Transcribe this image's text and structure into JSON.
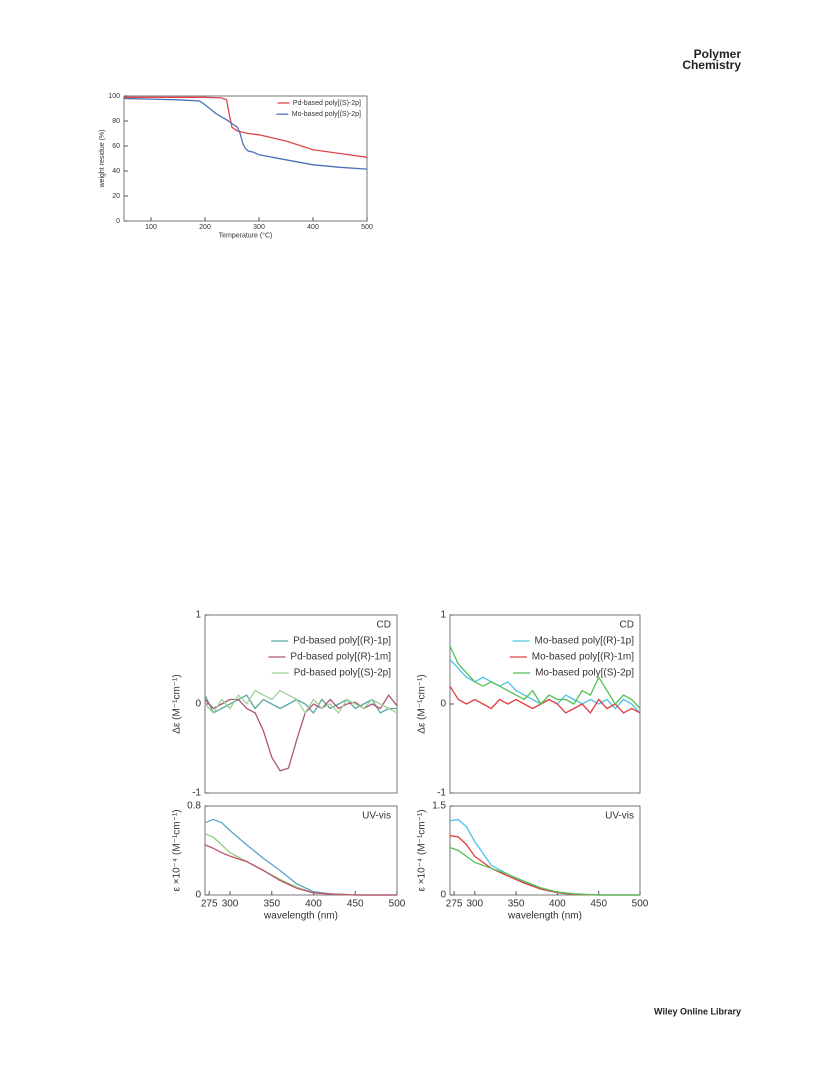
{
  "header": {
    "title": [
      "Polymer",
      "Chemistry"
    ]
  },
  "footer": {
    "text": "Wiley Online Library"
  },
  "chart_data": [
    {
      "type": "line",
      "xlabel": "Temperature (°C)",
      "ylabel": "weight residue (%)",
      "xlim": [
        50,
        500
      ],
      "ylim": [
        0,
        100
      ],
      "xticks": [
        100,
        200,
        300,
        400,
        500
      ],
      "yticks": [
        0,
        20,
        40,
        60,
        80,
        100
      ],
      "legend": "upper right",
      "series": [
        {
          "name": "Pd-based poly[(S)-2p]",
          "color": "#e0454f",
          "x": [
            50,
            100,
            150,
            200,
            230,
            240,
            245,
            250,
            260,
            280,
            300,
            350,
            400,
            450,
            500
          ],
          "values": [
            99,
            99,
            99,
            99,
            98.5,
            97,
            85,
            75,
            72,
            70,
            69,
            64,
            57,
            54,
            51
          ]
        },
        {
          "name": "Mo-based poly[(S)-2p]",
          "color": "#4a72b8",
          "x": [
            50,
            100,
            150,
            190,
            200,
            220,
            240,
            250,
            260,
            265,
            270,
            275,
            280,
            290,
            300,
            350,
            400,
            450,
            500
          ],
          "values": [
            98,
            97.5,
            97,
            96,
            93,
            86,
            81,
            78,
            75,
            70,
            62,
            58,
            56,
            55,
            53,
            49,
            45,
            43,
            41.5
          ]
        }
      ]
    },
    {
      "type": "line",
      "annotation": "CD",
      "ylabel": "Δε (M⁻¹cm⁻¹)",
      "xlim": [
        270,
        500
      ],
      "ylim": [
        -1,
        1
      ],
      "yticks": [
        -1,
        0,
        1
      ],
      "legend": "upper right",
      "x": [
        270,
        280,
        290,
        300,
        310,
        320,
        330,
        340,
        350,
        360,
        370,
        380,
        390,
        400,
        410,
        420,
        430,
        440,
        450,
        460,
        470,
        480,
        490,
        500
      ],
      "series": [
        {
          "name": "Pd-based poly[(R)-1p]",
          "color": "#5aa8a0",
          "values": [
            0.1,
            -0.1,
            -0.05,
            0,
            0.05,
            0.1,
            -0.05,
            0.05,
            0,
            -0.05,
            0,
            0.05,
            0,
            -0.1,
            0.05,
            -0.05,
            0,
            0.05,
            -0.05,
            0,
            0.05,
            -0.1,
            -0.05,
            -0.05
          ]
        },
        {
          "name": "Pd-based poly[(R)-1m]",
          "color": "#b0557a",
          "values": [
            0.05,
            -0.05,
            0,
            0.05,
            0.05,
            -0.05,
            -0.1,
            -0.3,
            -0.6,
            -0.75,
            -0.72,
            -0.4,
            -0.1,
            0,
            -0.05,
            0.05,
            -0.05,
            0,
            0.02,
            -0.05,
            0,
            -0.05,
            0.1,
            -0.02
          ]
        },
        {
          "name": "Pd-based poly[(S)-2p]",
          "color": "#9fd39a",
          "values": [
            0,
            -0.1,
            0.05,
            -0.05,
            0.1,
            0,
            0.15,
            0.1,
            0.05,
            0.15,
            0.1,
            0.05,
            -0.1,
            0.05,
            -0.05,
            0,
            -0.1,
            0.05,
            0,
            -0.05,
            0.05,
            0,
            -0.05,
            -0.1
          ]
        }
      ]
    },
    {
      "type": "line",
      "annotation": "UV-vis",
      "xlabel": "wavelength (nm)",
      "ylabel": "ε ×10⁻⁴ (M⁻¹cm⁻¹)",
      "xlim": [
        270,
        500
      ],
      "ylim": [
        0,
        0.8
      ],
      "xticks": [
        275,
        300,
        350,
        400,
        450,
        500
      ],
      "yticks": [
        0,
        0.8
      ],
      "x": [
        270,
        280,
        290,
        300,
        320,
        340,
        360,
        380,
        400,
        420,
        450,
        500
      ],
      "series": [
        {
          "color": "#5aa8c8",
          "values": [
            0.65,
            0.68,
            0.65,
            0.58,
            0.45,
            0.33,
            0.22,
            0.1,
            0.03,
            0.01,
            0,
            0
          ]
        },
        {
          "color": "#8fcf80",
          "values": [
            0.55,
            0.52,
            0.45,
            0.38,
            0.3,
            0.22,
            0.14,
            0.07,
            0.02,
            0.01,
            0,
            0
          ]
        },
        {
          "color": "#c4506a",
          "values": [
            0.45,
            0.42,
            0.38,
            0.35,
            0.3,
            0.22,
            0.13,
            0.06,
            0.02,
            0.01,
            0,
            0
          ]
        }
      ]
    },
    {
      "type": "line",
      "annotation": "CD",
      "ylabel": "Δε (M⁻¹cm⁻¹)",
      "xlim": [
        270,
        500
      ],
      "ylim": [
        -1,
        1
      ],
      "yticks": [
        -1,
        0,
        1
      ],
      "legend": "upper right",
      "x": [
        270,
        280,
        290,
        300,
        310,
        320,
        330,
        340,
        350,
        360,
        370,
        380,
        390,
        400,
        410,
        420,
        430,
        440,
        450,
        460,
        470,
        480,
        490,
        500
      ],
      "series": [
        {
          "name": "Mo-based poly[(R)-1p]",
          "color": "#4fc3e8",
          "values": [
            0.5,
            0.4,
            0.3,
            0.25,
            0.3,
            0.25,
            0.2,
            0.25,
            0.15,
            0.1,
            0.05,
            0,
            0.05,
            0,
            0.1,
            0.05,
            0,
            0.05,
            0,
            0.05,
            -0.05,
            0.05,
            0,
            -0.1
          ]
        },
        {
          "name": "Mo-based poly[(R)-1m]",
          "color": "#e04040",
          "values": [
            0.2,
            0.05,
            0,
            0.05,
            0,
            -0.05,
            0.05,
            0,
            0.05,
            0,
            -0.05,
            0,
            0.05,
            0,
            -0.1,
            -0.05,
            0,
            -0.1,
            0.05,
            -0.05,
            0,
            -0.1,
            -0.05,
            -0.1
          ]
        },
        {
          "name": "Mo-based poly[(S)-2p]",
          "color": "#55c055",
          "values": [
            0.65,
            0.45,
            0.35,
            0.25,
            0.2,
            0.25,
            0.2,
            0.15,
            0.1,
            0.05,
            0.15,
            0,
            0.1,
            0.05,
            0.05,
            0,
            0.15,
            0.1,
            0.3,
            0.15,
            0,
            0.1,
            0.05,
            -0.05
          ]
        }
      ]
    },
    {
      "type": "line",
      "annotation": "UV-vis",
      "xlabel": "wavelength (nm)",
      "ylabel": "ε ×10⁻⁴ (M⁻¹cm⁻¹)",
      "xlim": [
        270,
        500
      ],
      "ylim": [
        0,
        1.5
      ],
      "xticks": [
        275,
        300,
        350,
        400,
        450,
        500
      ],
      "yticks": [
        0,
        1.5
      ],
      "x": [
        270,
        280,
        290,
        300,
        320,
        340,
        360,
        380,
        400,
        420,
        450,
        500
      ],
      "series": [
        {
          "color": "#4fc3e8",
          "values": [
            1.25,
            1.27,
            1.15,
            0.9,
            0.5,
            0.35,
            0.22,
            0.1,
            0.04,
            0.01,
            0,
            0
          ]
        },
        {
          "color": "#e04040",
          "values": [
            1.0,
            0.98,
            0.85,
            0.65,
            0.45,
            0.32,
            0.2,
            0.1,
            0.04,
            0.01,
            0,
            0
          ]
        },
        {
          "color": "#55c055",
          "values": [
            0.8,
            0.75,
            0.65,
            0.55,
            0.45,
            0.35,
            0.23,
            0.12,
            0.05,
            0.02,
            0,
            0
          ]
        }
      ]
    }
  ]
}
